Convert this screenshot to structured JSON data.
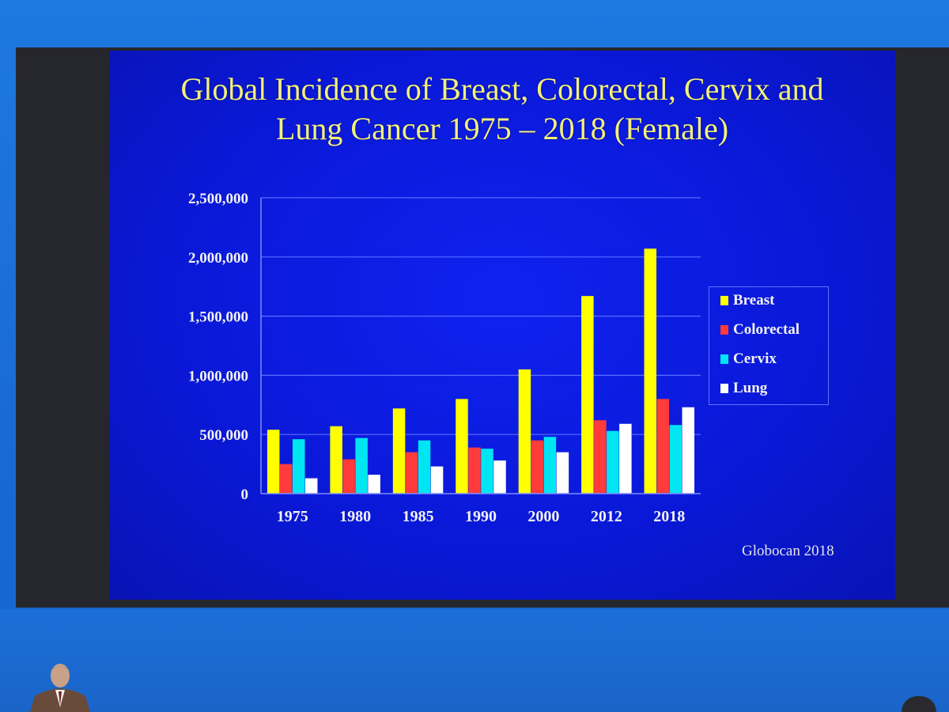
{
  "slide": {
    "title_line1": "Global Incidence of Breast, Colorectal, Cervix and",
    "title_line2": "Lung Cancer 1975 – 2018 (Female)",
    "source": "Globocan 2018"
  },
  "chart_data": {
    "type": "bar",
    "title": "Global Incidence of Breast, Colorectal, Cervix and Lung Cancer 1975 – 2018 (Female)",
    "categories": [
      "1975",
      "1980",
      "1985",
      "1990",
      "2000",
      "2012",
      "2018"
    ],
    "series": [
      {
        "name": "Breast",
        "color": "#ffff00",
        "values": [
          540000,
          570000,
          720000,
          800000,
          1050000,
          1670000,
          2070000
        ]
      },
      {
        "name": "Colorectal",
        "color": "#ff3b3b",
        "values": [
          250000,
          290000,
          350000,
          390000,
          450000,
          620000,
          800000
        ]
      },
      {
        "name": "Cervix",
        "color": "#00e5f2",
        "values": [
          460000,
          470000,
          450000,
          380000,
          480000,
          530000,
          580000
        ]
      },
      {
        "name": "Lung",
        "color": "#ffffff",
        "values": [
          130000,
          160000,
          230000,
          280000,
          350000,
          590000,
          730000
        ]
      }
    ],
    "yticks": [
      "0",
      "500,000",
      "1,000,000",
      "1,500,000",
      "2,000,000",
      "2,500,000"
    ],
    "ylim": [
      0,
      2500000
    ],
    "grid": true,
    "legend_position": "right",
    "xlabel": "",
    "ylabel": ""
  }
}
